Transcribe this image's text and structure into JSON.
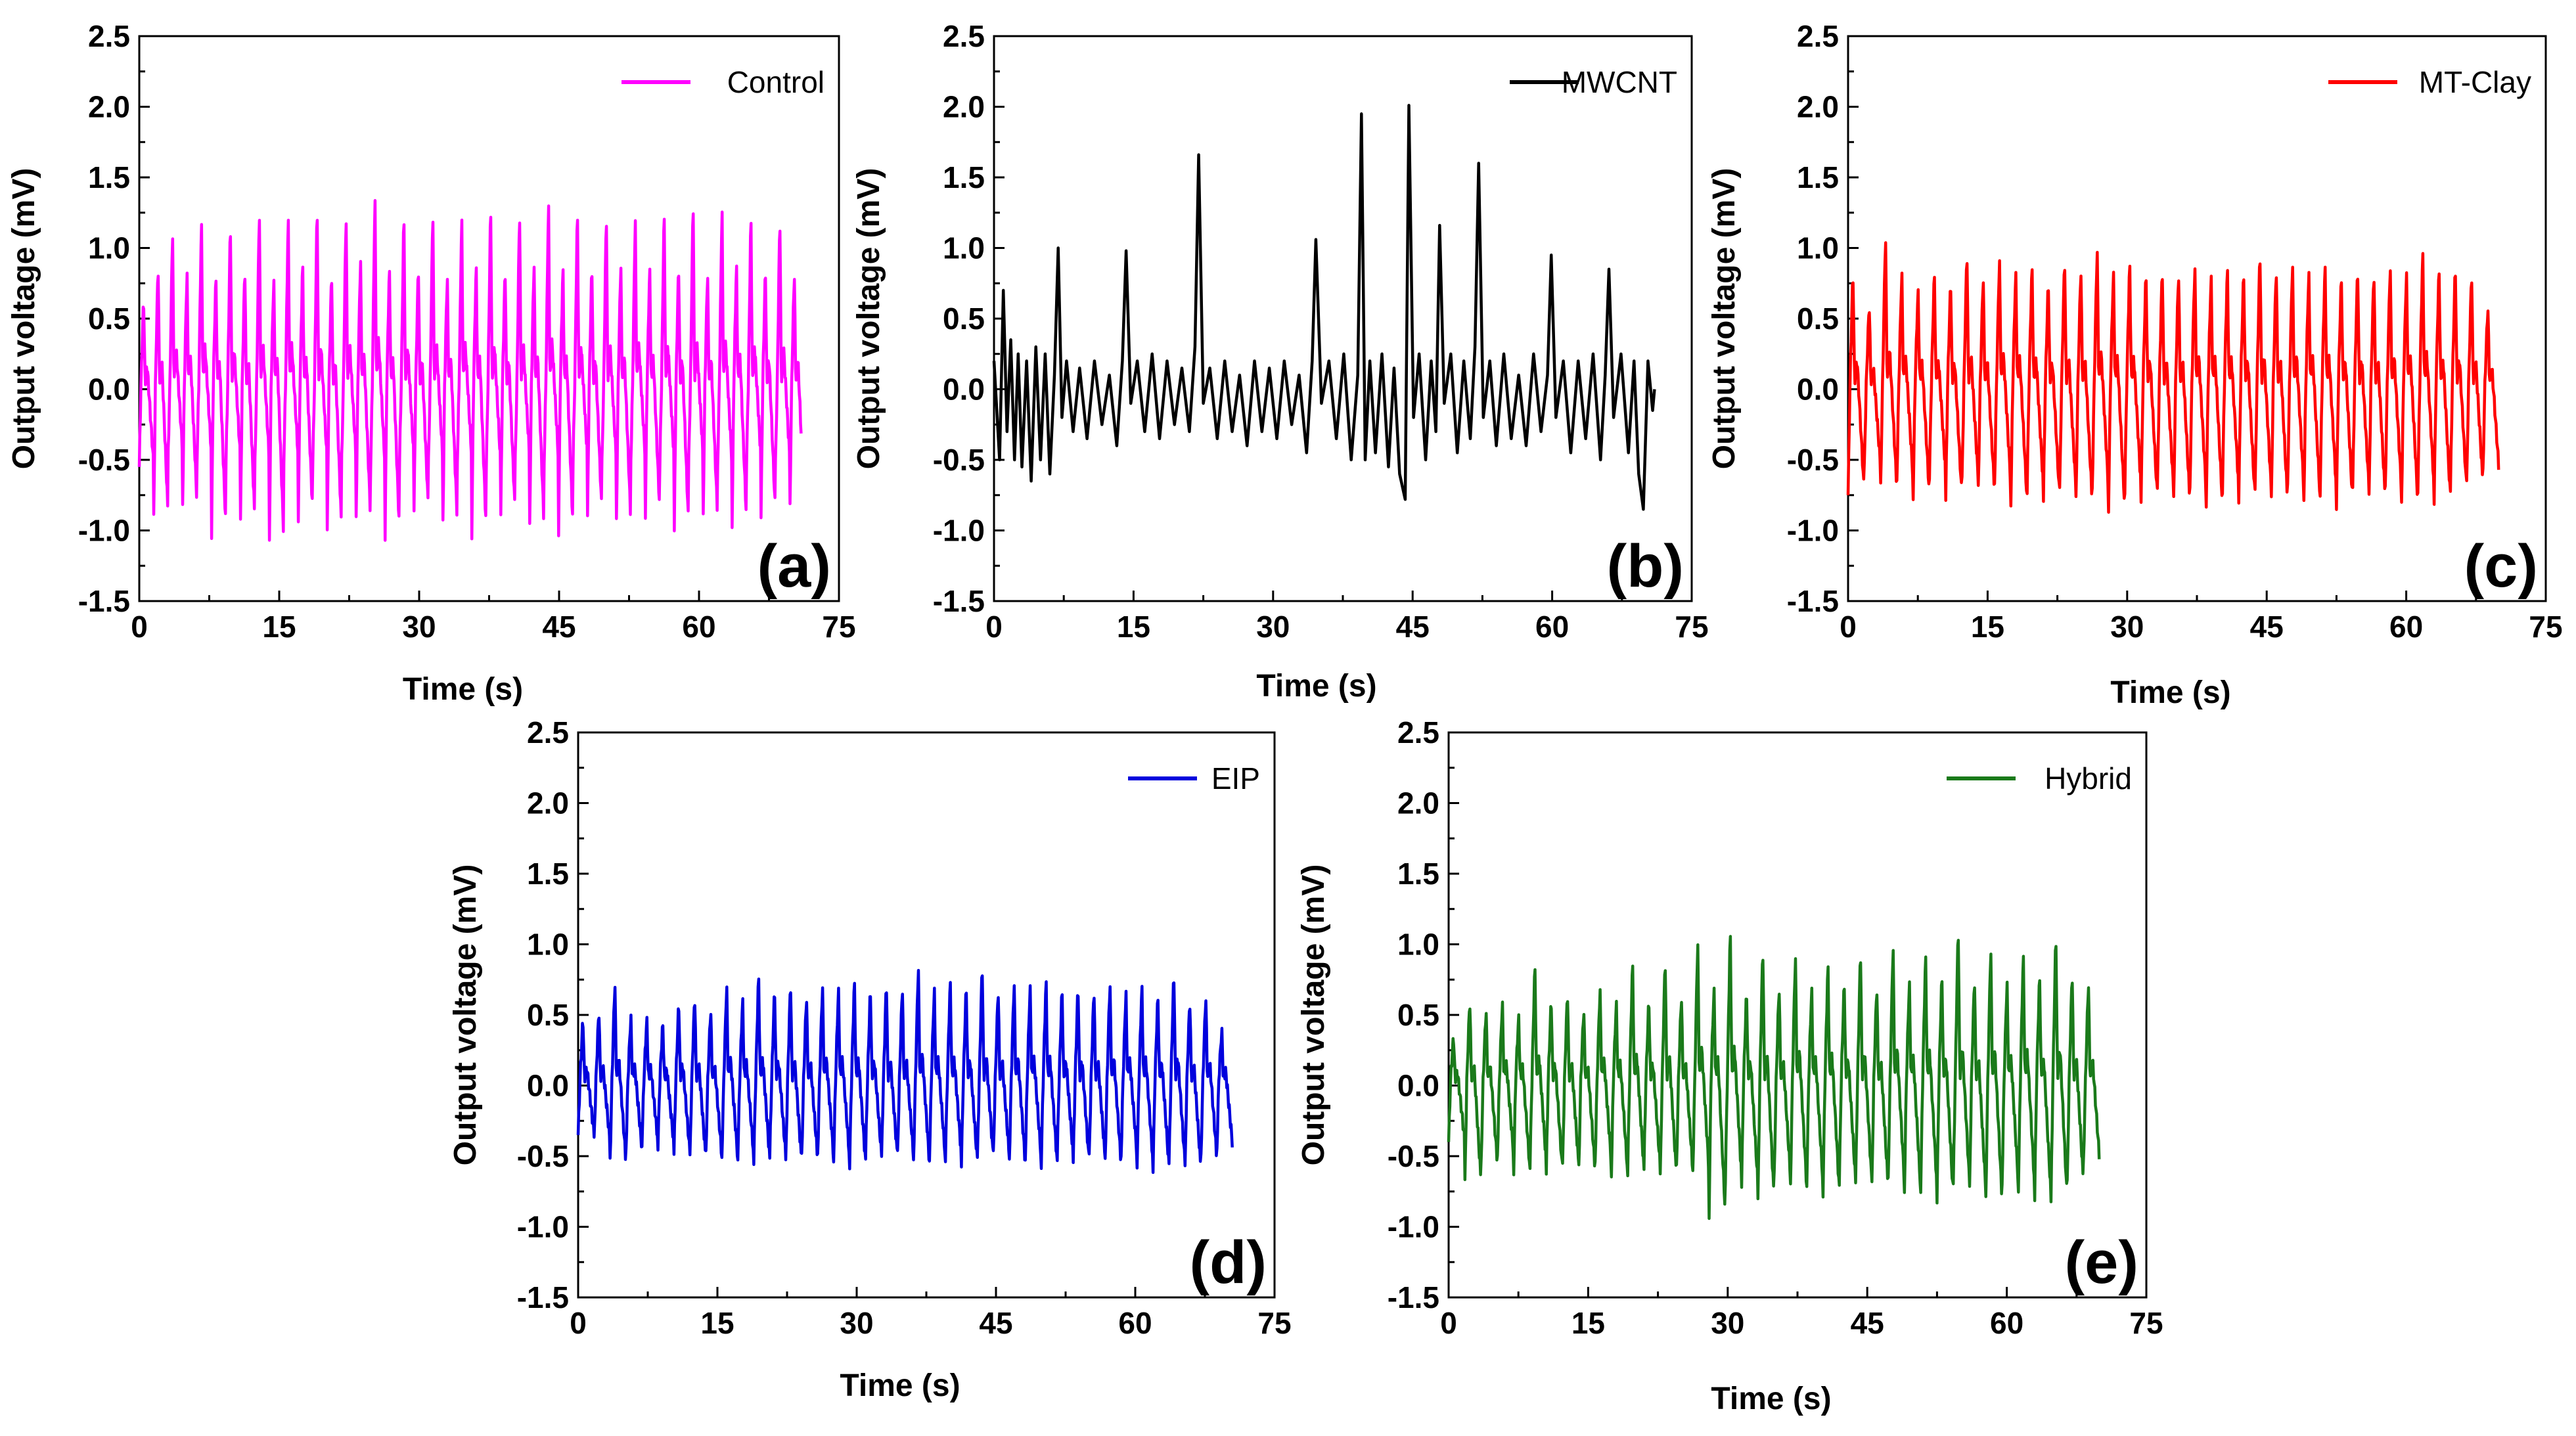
{
  "chart_data": [
    {
      "panel": "a",
      "type": "line",
      "panel_label": "(a)",
      "title": "",
      "xlabel": "Time (s)",
      "ylabel": "Output voltage (mV)",
      "xlim": [
        0,
        75
      ],
      "ylim": [
        -1.5,
        2.5
      ],
      "xticks": [
        "0",
        "15",
        "30",
        "45",
        "60",
        "75"
      ],
      "yticks": [
        "-1.5",
        "-1.0",
        "-0.5",
        "0.0",
        "0.5",
        "1.0",
        "1.5",
        "2.0",
        "2.5"
      ],
      "legend_position": "top-right",
      "series": [
        {
          "name": "Control",
          "color": "#ff00ff",
          "x_range": [
            0,
            71
          ],
          "period_s": 1.55,
          "peaks": [
            0.65,
            0.9,
            1.15,
            0.85,
            1.22,
            0.82,
            1.2,
            0.88,
            1.3,
            0.8,
            1.25,
            0.92,
            1.32,
            0.85,
            1.28,
            0.95,
            1.4,
            0.88,
            1.28,
            0.9,
            1.3,
            0.82,
            1.25,
            0.9,
            1.33,
            0.88,
            1.3,
            0.92,
            1.36,
            0.88,
            1.3,
            0.9,
            1.28,
            0.92,
            1.25,
            0.88,
            1.3,
            0.9,
            1.38,
            0.85,
            1.32,
            0.9,
            1.26,
            0.88,
            1.25,
            0.85
          ],
          "troughs": [
            -0.55,
            -0.92,
            -0.45,
            -0.82,
            -0.48,
            -1.02,
            -0.5,
            -0.95,
            -0.52,
            -1.08,
            -0.5,
            -0.9,
            -0.52,
            -1.02,
            -0.5,
            -0.92,
            -0.55,
            -1.03,
            -0.5,
            -0.88,
            -0.52,
            -0.95,
            -0.5,
            -1.02,
            -0.55,
            -0.9,
            -0.5,
            -0.98,
            -0.52,
            -1.0,
            -0.5,
            -0.9,
            -0.52,
            -0.95,
            -0.5,
            -0.88,
            -0.52,
            -1.0,
            -0.5,
            -0.92,
            -0.55,
            -0.95,
            -0.5,
            -0.9,
            -0.52,
            -0.85
          ]
        }
      ]
    },
    {
      "panel": "b",
      "type": "line",
      "panel_label": "(b)",
      "title": "",
      "xlabel": "Time (s)",
      "ylabel": "Output voltage (mV)",
      "xlim": [
        0,
        75
      ],
      "ylim": [
        -1.5,
        2.5
      ],
      "xticks": [
        "0",
        "15",
        "30",
        "45",
        "60",
        "75"
      ],
      "yticks": [
        "-1.5",
        "-1.0",
        "-0.5",
        "0.0",
        "0.5",
        "1.0",
        "1.5",
        "2.0",
        "2.5"
      ],
      "legend_position": "top-right",
      "series": [
        {
          "name": "MWCNT",
          "color": "#000000",
          "x": [
            0,
            0.6,
            1.0,
            1.4,
            1.8,
            2.2,
            2.6,
            3.0,
            3.5,
            4.0,
            4.5,
            5.0,
            5.5,
            6.0,
            6.5,
            6.9,
            7.3,
            7.8,
            8.5,
            9.2,
            10,
            10.8,
            11.6,
            12.4,
            13.2,
            13.8,
            14.2,
            14.7,
            15.4,
            16.2,
            17.0,
            17.8,
            18.6,
            19.4,
            20.2,
            21.0,
            21.6,
            22.0,
            22.5,
            23.2,
            24.0,
            24.8,
            25.6,
            26.4,
            27.2,
            28.0,
            28.8,
            29.6,
            30.4,
            31.2,
            32.0,
            32.8,
            33.6,
            34.2,
            34.6,
            35.2,
            36.0,
            36.8,
            37.6,
            38.4,
            39.1,
            39.5,
            39.9,
            40.4,
            41.0,
            41.7,
            42.4,
            43.0,
            43.6,
            44.2,
            44.6,
            45.1,
            45.7,
            46.4,
            47.0,
            47.5,
            47.9,
            48.4,
            49.1,
            49.8,
            50.5,
            51.2,
            51.7,
            52.1,
            52.6,
            53.3,
            54.0,
            54.8,
            55.6,
            56.4,
            57.2,
            58.0,
            58.8,
            59.5,
            59.9,
            60.4,
            61.2,
            62.0,
            62.8,
            63.6,
            64.4,
            65.2,
            65.7,
            66.1,
            66.6,
            67.4,
            68.2,
            68.8,
            69.3,
            69.8,
            70.3,
            70.8,
            71.0
          ],
          "y": [
            0.2,
            -0.5,
            0.7,
            -0.3,
            0.35,
            -0.5,
            0.25,
            -0.55,
            0.2,
            -0.65,
            0.3,
            -0.5,
            0.25,
            -0.6,
            0.1,
            1.0,
            -0.2,
            0.2,
            -0.3,
            0.15,
            -0.35,
            0.2,
            -0.25,
            0.1,
            -0.4,
            0.2,
            0.98,
            -0.1,
            0.2,
            -0.3,
            0.25,
            -0.35,
            0.2,
            -0.25,
            0.15,
            -0.3,
            0.3,
            1.66,
            -0.1,
            0.15,
            -0.35,
            0.2,
            -0.3,
            0.1,
            -0.4,
            0.2,
            -0.3,
            0.15,
            -0.35,
            0.2,
            -0.25,
            0.1,
            -0.45,
            0.2,
            1.06,
            -0.1,
            0.2,
            -0.35,
            0.25,
            -0.5,
            0.1,
            1.95,
            -0.5,
            0.2,
            -0.45,
            0.25,
            -0.55,
            0.15,
            -0.6,
            -0.78,
            2.01,
            -0.2,
            0.25,
            -0.5,
            0.2,
            -0.3,
            1.16,
            -0.1,
            0.25,
            -0.45,
            0.2,
            -0.35,
            0.3,
            1.6,
            -0.2,
            0.2,
            -0.4,
            0.25,
            -0.35,
            0.1,
            -0.4,
            0.25,
            -0.3,
            0.1,
            0.95,
            -0.2,
            0.2,
            -0.45,
            0.2,
            -0.35,
            0.25,
            -0.5,
            0.1,
            0.85,
            -0.2,
            0.25,
            -0.45,
            0.2,
            -0.6,
            -0.85,
            0.2,
            -0.15,
            0.0
          ]
        }
      ]
    },
    {
      "panel": "c",
      "type": "line",
      "panel_label": "(c)",
      "title": "",
      "xlabel": "Time (s)",
      "ylabel": "Output voltage (mV)",
      "xlim": [
        0,
        75
      ],
      "ylim": [
        -1.5,
        2.5
      ],
      "xticks": [
        "0",
        "15",
        "30",
        "45",
        "60",
        "75"
      ],
      "yticks": [
        "-1.5",
        "-1.0",
        "-0.5",
        "0.0",
        "0.5",
        "1.0",
        "1.5",
        "2.0",
        "2.5"
      ],
      "legend_position": "top-right",
      "series": [
        {
          "name": "MT-Clay",
          "color": "#ff0000",
          "x_range": [
            0,
            70
          ],
          "period_s": 1.75,
          "peaks": [
            0.85,
            0.62,
            1.12,
            0.85,
            0.72,
            0.85,
            0.78,
            1.0,
            0.82,
            0.95,
            0.85,
            0.9,
            0.78,
            0.95,
            0.88,
            1.02,
            0.85,
            0.92,
            0.85,
            0.88,
            0.85,
            0.9,
            0.82,
            0.88,
            0.85,
            1.0,
            0.88,
            0.92,
            0.85,
            0.9,
            0.82,
            0.88,
            0.85,
            0.9,
            0.85,
            1.0,
            0.88,
            0.9,
            0.85,
            0.6
          ],
          "troughs": [
            -0.75,
            -0.55,
            -0.7,
            -0.65,
            -0.75,
            -0.6,
            -0.78,
            -0.65,
            -0.72,
            -0.68,
            -0.8,
            -0.7,
            -0.78,
            -0.72,
            -0.8,
            -0.72,
            -0.85,
            -0.7,
            -0.78,
            -0.72,
            -0.8,
            -0.72,
            -0.82,
            -0.7,
            -0.78,
            -0.72,
            -0.8,
            -0.7,
            -0.78,
            -0.72,
            -0.82,
            -0.7,
            -0.78,
            -0.72,
            -0.8,
            -0.7,
            -0.78,
            -0.72,
            -0.68,
            -0.6
          ]
        }
      ]
    },
    {
      "panel": "d",
      "type": "line",
      "panel_label": "(d)",
      "title": "",
      "xlabel": "Time (s)",
      "ylabel": "Output voltage (mV)",
      "xlim": [
        0,
        75
      ],
      "ylim": [
        -1.5,
        2.5
      ],
      "xticks": [
        "0",
        "15",
        "30",
        "45",
        "60",
        "75"
      ],
      "yticks": [
        "-1.5",
        "-1.0",
        "-0.5",
        "0.0",
        "0.5",
        "1.0",
        "1.5",
        "2.0",
        "2.5"
      ],
      "legend_position": "top-right",
      "series": [
        {
          "name": "EIP",
          "color": "#0000dd",
          "x_range": [
            0,
            71
          ],
          "period_s": 1.72,
          "peaks": [
            0.48,
            0.55,
            0.75,
            0.5,
            0.48,
            0.45,
            0.6,
            0.65,
            0.55,
            0.72,
            0.62,
            0.8,
            0.7,
            0.75,
            0.65,
            0.72,
            0.7,
            0.76,
            0.7,
            0.75,
            0.72,
            0.86,
            0.7,
            0.76,
            0.72,
            0.88,
            0.7,
            0.75,
            0.72,
            0.76,
            0.7,
            0.72,
            0.7,
            0.75,
            0.68,
            0.72,
            0.65,
            0.82,
            0.62,
            0.65,
            0.4
          ],
          "troughs": [
            -0.35,
            -0.4,
            -0.55,
            -0.45,
            -0.4,
            -0.42,
            -0.48,
            -0.52,
            -0.5,
            -0.52,
            -0.5,
            -0.52,
            -0.5,
            -0.55,
            -0.52,
            -0.5,
            -0.52,
            -0.55,
            -0.5,
            -0.52,
            -0.5,
            -0.55,
            -0.52,
            -0.5,
            -0.55,
            -0.52,
            -0.5,
            -0.55,
            -0.52,
            -0.55,
            -0.5,
            -0.55,
            -0.52,
            -0.55,
            -0.5,
            -0.55,
            -0.58,
            -0.55,
            -0.6,
            -0.52,
            -0.45
          ]
        }
      ]
    },
    {
      "panel": "e",
      "type": "line",
      "panel_label": "(e)",
      "title": "",
      "xlabel": "Time (s)",
      "ylabel": "Output voltage (mV)",
      "xlim": [
        0,
        75
      ],
      "ylim": [
        -1.5,
        2.5
      ],
      "xticks": [
        "0",
        "15",
        "30",
        "45",
        "60",
        "75"
      ],
      "yticks": [
        "-1.5",
        "-1.0",
        "-0.5",
        "0.0",
        "0.5",
        "1.0",
        "1.5",
        "2.0",
        "2.5"
      ],
      "legend_position": "top-right",
      "series": [
        {
          "name": "Hybrid",
          "color": "#1a7a1a",
          "x_range": [
            0,
            71
          ],
          "period_s": 1.75,
          "peaks": [
            0.35,
            0.62,
            0.55,
            0.6,
            0.5,
            0.88,
            0.62,
            0.68,
            0.55,
            0.7,
            0.6,
            0.9,
            0.62,
            0.92,
            0.65,
            1.05,
            0.7,
            1.12,
            0.68,
            1.0,
            0.72,
            0.95,
            0.7,
            0.88,
            0.75,
            0.98,
            0.72,
            1.02,
            0.75,
            0.95,
            0.8,
            1.15,
            0.78,
            1.0,
            0.75,
            0.95,
            0.8,
            1.1,
            0.82,
            0.75
          ],
          "troughs": [
            -0.4,
            -0.7,
            -0.55,
            -0.5,
            -0.6,
            -0.55,
            -0.62,
            -0.58,
            -0.6,
            -0.55,
            -0.62,
            -0.6,
            -0.58,
            -0.65,
            -0.6,
            -0.62,
            -0.92,
            -0.65,
            -0.7,
            -0.82,
            -0.65,
            -0.72,
            -0.7,
            -0.75,
            -0.68,
            -0.7,
            -0.72,
            -0.68,
            -0.75,
            -0.72,
            -0.8,
            -0.7,
            -0.75,
            -0.82,
            -0.7,
            -0.72,
            -0.78,
            -0.82,
            -0.7,
            -0.55
          ]
        }
      ]
    }
  ]
}
